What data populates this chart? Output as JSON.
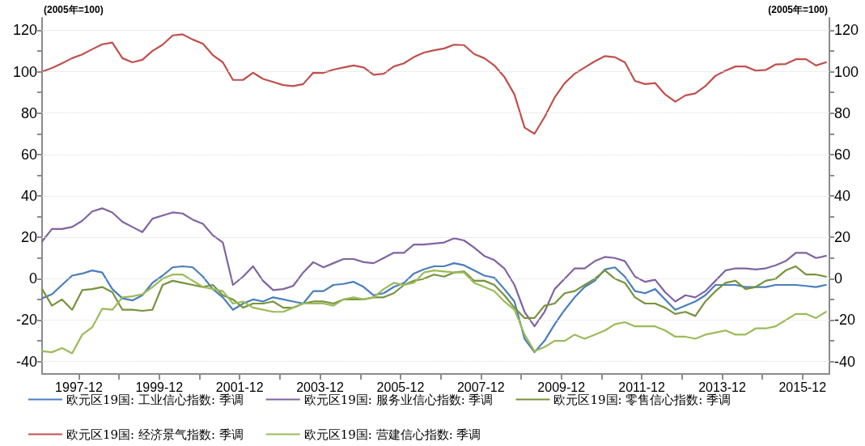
{
  "chart_data": {
    "type": "line",
    "ylabel": "(2005年=100)",
    "y2label": "(2005年=100)",
    "x": [
      "1997-01",
      "1997-04",
      "1997-07",
      "1997-10",
      "1998-01",
      "1998-04",
      "1998-07",
      "1998-10",
      "1999-01",
      "1999-04",
      "1999-07",
      "1999-10",
      "2000-01",
      "2000-04",
      "2000-07",
      "2000-10",
      "2001-01",
      "2001-04",
      "2001-07",
      "2001-10",
      "2002-01",
      "2002-04",
      "2002-07",
      "2002-10",
      "2003-01",
      "2003-04",
      "2003-07",
      "2003-10",
      "2004-01",
      "2004-04",
      "2004-07",
      "2004-10",
      "2005-01",
      "2005-04",
      "2005-07",
      "2005-10",
      "2006-01",
      "2006-04",
      "2006-07",
      "2006-10",
      "2007-01",
      "2007-04",
      "2007-07",
      "2007-10",
      "2008-01",
      "2008-04",
      "2008-07",
      "2008-10",
      "2009-01",
      "2009-04",
      "2009-07",
      "2009-10",
      "2010-01",
      "2010-04",
      "2010-07",
      "2010-10",
      "2011-01",
      "2011-04",
      "2011-07",
      "2011-10",
      "2012-01",
      "2012-04",
      "2012-07",
      "2012-10",
      "2013-01",
      "2013-04",
      "2013-07",
      "2013-10",
      "2014-01",
      "2014-04",
      "2014-07",
      "2014-10",
      "2015-01",
      "2015-04",
      "2015-07",
      "2015-10",
      "2016-01",
      "2016-04",
      "2016-07"
    ],
    "series": [
      {
        "name": "欧元区19国: 工业信心指数: 季调",
        "color": "#4a7ebb",
        "values": [
          -9.5,
          -7.5,
          -3,
          1.5,
          2.5,
          4,
          3,
          -5,
          -9.5,
          -10.5,
          -8,
          -2,
          1.5,
          5.5,
          6,
          5.5,
          1,
          -5,
          -9,
          -15,
          -12,
          -10,
          -11,
          -9,
          -10,
          -11,
          -12,
          -6,
          -6,
          -3,
          -2.5,
          -1.5,
          -4,
          -8,
          -7,
          -4,
          -2,
          2.5,
          4.5,
          6,
          6,
          7.5,
          6.5,
          4,
          1.5,
          0.5,
          -5,
          -11,
          -29,
          -35.5,
          -30,
          -22,
          -15,
          -9,
          -4,
          -1,
          4.5,
          5.5,
          1,
          -6,
          -7,
          -5,
          -10,
          -15,
          -13,
          -11,
          -8,
          -3,
          -3,
          -3,
          -4,
          -4,
          -4,
          -3,
          -3,
          -3,
          -3.5,
          -4,
          -3
        ]
      },
      {
        "name": "欧元区19国: 服务业信心指数: 季调",
        "color": "#8064a2",
        "values": [
          18,
          24,
          24,
          25,
          28,
          32.5,
          34,
          32,
          27.5,
          25,
          22.5,
          29,
          30.5,
          32,
          31.5,
          28.5,
          26.5,
          21,
          17.5,
          -3,
          1,
          6,
          -1,
          -5.5,
          -5,
          -3.5,
          3,
          8,
          5.5,
          7.5,
          9.5,
          9.5,
          8,
          7.5,
          10,
          12.5,
          12.5,
          16.5,
          16.5,
          17,
          17.5,
          19.5,
          18.5,
          15,
          11,
          9,
          5,
          -3,
          -16,
          -23,
          -16,
          -5,
          0,
          5,
          5,
          8.5,
          10.5,
          10,
          8.5,
          1,
          -1.5,
          -0.5,
          -6.5,
          -11,
          -8,
          -9,
          -6,
          -1,
          4,
          5,
          5,
          4.5,
          5,
          6.5,
          8.5,
          12.5,
          12.5,
          10,
          11
        ]
      },
      {
        "name": "欧元区19国: 零售信心指数: 季调",
        "color": "#77933c",
        "values": [
          -5,
          -13,
          -10,
          -15,
          -5.5,
          -5,
          -4,
          -6.5,
          -15,
          -15,
          -15.5,
          -15,
          -3,
          -1,
          -2,
          -3,
          -4,
          -3,
          -8,
          -10,
          -14,
          -12,
          -12,
          -11,
          -14,
          -14,
          -12,
          -11,
          -11,
          -12,
          -10,
          -10,
          -10,
          -9,
          -9,
          -7,
          -3,
          -1,
          0,
          2,
          1,
          3,
          3.5,
          -1,
          -1,
          -3,
          -8,
          -14,
          -19,
          -19,
          -13,
          -12,
          -7,
          -6,
          -3,
          0,
          4,
          0,
          -2,
          -9,
          -12,
          -12,
          -14,
          -17,
          -16,
          -18,
          -11,
          -6,
          -2,
          -1,
          -5,
          -4,
          -1,
          0,
          4,
          6,
          2,
          2,
          1
        ]
      },
      {
        "name": "欧元区19国: 经济景气指数: 季调",
        "color": "#c0504d",
        "values": [
          100,
          101.8,
          104,
          106.5,
          108.3,
          110.8,
          113.2,
          114,
          106.5,
          104.5,
          105.7,
          110,
          113,
          117.5,
          118,
          115.5,
          113.5,
          108,
          104.5,
          96,
          96,
          99.5,
          96.5,
          95,
          93.5,
          93,
          94,
          99.5,
          99.4,
          101,
          102,
          103,
          102,
          98.5,
          99,
          102.5,
          104,
          107,
          109.2,
          110.3,
          111.2,
          113,
          112.8,
          108.5,
          106.5,
          103,
          97.5,
          89,
          73,
          70,
          78,
          87.5,
          94.5,
          99,
          102,
          105,
          107.5,
          107,
          104.5,
          95.5,
          94,
          94.5,
          89,
          85.5,
          88.5,
          89.5,
          93,
          98,
          100.5,
          102.5,
          102.5,
          100.5,
          100.8,
          103.5,
          103.7,
          106,
          106,
          103,
          104.5
        ]
      },
      {
        "name": "欧元区19国: 营建信心指数: 季调",
        "color": "#9bbb59",
        "values": [
          -35,
          -35.5,
          -33.5,
          -36,
          -27,
          -23.5,
          -14.5,
          -15,
          -9,
          -8.5,
          -7.5,
          -4,
          0,
          2,
          2,
          -1,
          -4,
          -5,
          -6,
          -12,
          -11,
          -14,
          -15,
          -16,
          -16,
          -14,
          -12,
          -12,
          -12,
          -13,
          -10,
          -9,
          -10,
          -9,
          -5,
          -2,
          -3,
          -2,
          3,
          4,
          3.5,
          3,
          3,
          -2,
          -4,
          -6,
          -11,
          -15,
          -27,
          -35,
          -33,
          -30,
          -30,
          -27,
          -29,
          -27,
          -25,
          -22,
          -21,
          -23,
          -23,
          -23,
          -25,
          -28,
          -28,
          -29,
          -27,
          -26,
          -25,
          -27,
          -27,
          -24,
          -24,
          -23,
          -20,
          -17,
          -17,
          -19,
          -16
        ]
      }
    ],
    "xlim": [
      "1997-01",
      "2016-08"
    ],
    "xticks": [
      {
        "value": "1997-12",
        "label": "1997-12"
      },
      {
        "value": "1998-12",
        "label": null
      },
      {
        "value": "1999-12",
        "label": "1999-12"
      },
      {
        "value": "2000-12",
        "label": null
      },
      {
        "value": "2001-12",
        "label": "2001-12"
      },
      {
        "value": "2002-12",
        "label": null
      },
      {
        "value": "2003-12",
        "label": "2003-12"
      },
      {
        "value": "2004-12",
        "label": null
      },
      {
        "value": "2005-12",
        "label": "2005-12"
      },
      {
        "value": "2006-12",
        "label": null
      },
      {
        "value": "2007-12",
        "label": "2007-12"
      },
      {
        "value": "2008-12",
        "label": null
      },
      {
        "value": "2009-12",
        "label": "2009-12"
      },
      {
        "value": "2010-12",
        "label": null
      },
      {
        "value": "2011-12",
        "label": "2011-12"
      },
      {
        "value": "2012-12",
        "label": null
      },
      {
        "value": "2013-12",
        "label": "2013-12"
      },
      {
        "value": "2014-12",
        "label": null
      },
      {
        "value": "2015-12",
        "label": "2015-12"
      }
    ],
    "ylim": [
      -46,
      126
    ],
    "yticks": [
      -40,
      {
        "value": -30,
        "label": null
      },
      -20,
      {
        "value": -10,
        "label": null
      },
      0,
      {
        "value": 10,
        "label": null
      },
      20,
      {
        "value": 30,
        "label": null
      },
      40,
      {
        "value": 50,
        "label": null
      },
      60,
      {
        "value": 70,
        "label": null
      },
      80,
      {
        "value": 90,
        "label": null
      },
      100,
      {
        "value": 110,
        "label": null
      },
      120
    ],
    "y2lim": [
      -46,
      126
    ],
    "y2ticks": [
      -40,
      {
        "value": -30,
        "label": null
      },
      -20,
      {
        "value": -10,
        "label": null
      },
      0,
      {
        "value": 10,
        "label": null
      },
      20,
      {
        "value": 30,
        "label": null
      },
      40,
      {
        "value": 50,
        "label": null
      },
      60,
      {
        "value": 70,
        "label": null
      },
      80,
      {
        "value": 90,
        "label": null
      },
      100,
      {
        "value": 110,
        "label": null
      },
      120
    ],
    "grid": "y",
    "legend": "bottom"
  }
}
